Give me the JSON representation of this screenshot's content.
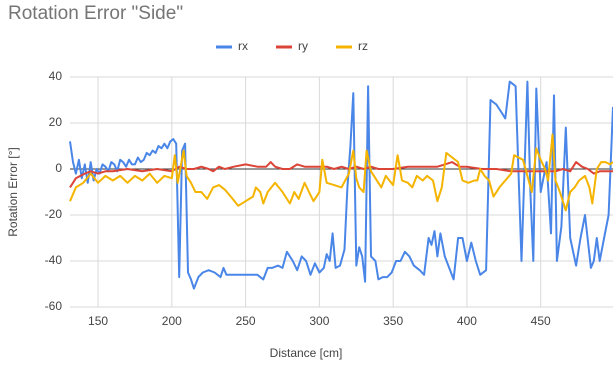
{
  "chart_data": {
    "type": "line",
    "title": "Rotation Error \"Side\"",
    "xlabel": "Distance [cm]",
    "ylabel": "Rotation Error [°]",
    "xlim": [
      131,
      499
    ],
    "xticks": [
      150,
      200,
      250,
      300,
      350,
      400,
      450
    ],
    "ylim": [
      -60,
      40
    ],
    "yticks": [
      -60,
      -40,
      -20,
      0,
      20,
      40
    ],
    "grid": true,
    "legend": "top",
    "series": [
      {
        "name": "rx",
        "color": "#4a86e8",
        "x": [
          131,
          133,
          135,
          137,
          139,
          141,
          143,
          145,
          147,
          149,
          151,
          153,
          155,
          157,
          159,
          161,
          163,
          165,
          167,
          169,
          171,
          173,
          175,
          177,
          179,
          181,
          183,
          185,
          187,
          189,
          191,
          193,
          195,
          197,
          199,
          201,
          203,
          205,
          207,
          209,
          211,
          213,
          215,
          218,
          221,
          225,
          229,
          233,
          235,
          237,
          241,
          250,
          258,
          262,
          265,
          268,
          272,
          275,
          278,
          282,
          285,
          288,
          291,
          294,
          297,
          300,
          303,
          305,
          307,
          309,
          311,
          314,
          317,
          319,
          321,
          323,
          325,
          327,
          329,
          331,
          333,
          335,
          338,
          340,
          343,
          346,
          349,
          352,
          355,
          358,
          361,
          364,
          368,
          371,
          374,
          376,
          378,
          380,
          382,
          385,
          388,
          391,
          394,
          397,
          400,
          403,
          406,
          409,
          413,
          416,
          420,
          423,
          426,
          429,
          433,
          437,
          441,
          443,
          445,
          447,
          450,
          454,
          457,
          459,
          461,
          464,
          467,
          470,
          474,
          477,
          480,
          484,
          486,
          488,
          490,
          493,
          496,
          499
        ],
        "values": [
          12,
          3,
          -2,
          4,
          -4,
          2,
          -6,
          3,
          -5,
          0,
          -2,
          2,
          1,
          -1,
          3,
          2,
          -1,
          4,
          3,
          1,
          4,
          2,
          2,
          5,
          3,
          4,
          7,
          6,
          8,
          7,
          10,
          9,
          11,
          9,
          12,
          13,
          11,
          -47,
          8,
          11,
          -45,
          -48,
          -52,
          -47,
          -45,
          -44,
          -45,
          -47,
          -43,
          -46,
          -46,
          -46,
          -46,
          -48,
          -43,
          -43,
          -42,
          -43,
          -36,
          -40,
          -44,
          -38,
          -40,
          -46,
          -41,
          -45,
          -43,
          -37,
          -40,
          -28,
          -43,
          -42,
          -35,
          -8,
          10,
          33,
          -42,
          -34,
          -38,
          -49,
          36,
          -38,
          -40,
          -48,
          -47,
          -47,
          -45,
          -40,
          -40,
          -36,
          -38,
          -42,
          -44,
          -46,
          -30,
          -33,
          -27,
          -38,
          -28,
          -38,
          -43,
          -48,
          -30,
          -30,
          -40,
          -32,
          -40,
          -46,
          -44,
          30,
          28,
          25,
          22,
          38,
          36,
          -40,
          38,
          -10,
          -40,
          35,
          -10,
          3,
          -28,
          32,
          -40,
          -25,
          18,
          -30,
          -42,
          -30,
          -20,
          -43,
          -40,
          -30,
          -40,
          -30,
          -20,
          27
        ]
      },
      {
        "name": "ry",
        "color": "#db4437",
        "x": [
          131,
          133,
          135,
          138,
          141,
          145,
          150,
          155,
          160,
          170,
          180,
          190,
          200,
          205,
          210,
          215,
          220,
          225,
          228,
          232,
          236,
          242,
          250,
          258,
          264,
          267,
          270,
          275,
          280,
          285,
          290,
          295,
          300,
          305,
          310,
          315,
          320,
          325,
          330,
          335,
          340,
          350,
          360,
          370,
          380,
          385,
          390,
          395,
          400,
          410,
          420,
          430,
          440,
          450,
          460,
          465,
          470,
          474,
          478,
          482,
          486,
          490,
          495,
          499
        ],
        "values": [
          -8,
          -6,
          -4,
          -3,
          -2,
          -1,
          -2,
          -1,
          -1,
          0,
          -1,
          0,
          -1,
          1,
          0,
          0,
          1,
          0,
          -1,
          1,
          0,
          1,
          2,
          1,
          1,
          3,
          1,
          0,
          0,
          2,
          1,
          1,
          1,
          1,
          0,
          1,
          0,
          1,
          0,
          1,
          0,
          0,
          1,
          1,
          1,
          2,
          3,
          1,
          1,
          0,
          0,
          -1,
          -1,
          -1,
          -1,
          0,
          -1,
          3,
          1,
          0,
          -2,
          -1,
          -1,
          -1
        ]
      },
      {
        "name": "rz",
        "color": "#f4b400",
        "x": [
          131,
          135,
          140,
          145,
          150,
          155,
          160,
          165,
          170,
          175,
          180,
          185,
          190,
          195,
          200,
          202,
          204,
          208,
          210,
          213,
          216,
          220,
          224,
          228,
          232,
          236,
          240,
          245,
          250,
          255,
          257,
          260,
          262,
          265,
          270,
          275,
          280,
          283,
          286,
          290,
          293,
          296,
          300,
          302,
          305,
          310,
          315,
          320,
          323,
          325,
          327,
          330,
          332,
          335,
          338,
          342,
          345,
          350,
          353,
          356,
          360,
          363,
          366,
          370,
          373,
          377,
          380,
          383,
          386,
          390,
          394,
          397,
          401,
          405,
          407,
          409,
          412,
          415,
          418,
          422,
          426,
          430,
          432,
          438,
          441,
          444,
          447,
          450,
          453,
          455,
          458,
          460,
          463,
          467,
          470,
          473,
          476,
          480,
          483,
          485,
          488,
          491,
          494,
          497,
          499
        ],
        "values": [
          -14,
          -8,
          -6,
          -2,
          -6,
          -3,
          -5,
          -3,
          -6,
          -3,
          -5,
          -2,
          -6,
          -3,
          -4,
          6,
          -6,
          8,
          -3,
          -6,
          -10,
          -10,
          -13,
          -8,
          -7,
          -9,
          -12,
          -16,
          -14,
          -12,
          -8,
          -10,
          -15,
          -10,
          -6,
          -10,
          -15,
          -10,
          -13,
          -6,
          -10,
          -14,
          -10,
          4,
          -6,
          -7,
          -8,
          -2,
          8,
          -4,
          -8,
          -10,
          8,
          -1,
          -4,
          -8,
          -3,
          -7,
          6,
          -5,
          -6,
          -8,
          -3,
          -5,
          -3,
          -5,
          -14,
          -8,
          7,
          5,
          3,
          -5,
          -6,
          -5,
          -5,
          0,
          -3,
          -5,
          -12,
          -8,
          -5,
          -2,
          6,
          4,
          -3,
          -10,
          9,
          4,
          0,
          -5,
          15,
          -5,
          -10,
          -18,
          -10,
          -8,
          -5,
          -3,
          -8,
          -15,
          0,
          3,
          3,
          2,
          3
        ]
      }
    ]
  }
}
